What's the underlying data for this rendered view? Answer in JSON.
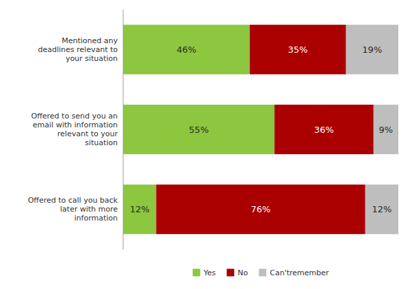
{
  "chart_data": {
    "type": "bar",
    "orientation": "horizontal",
    "stacked": true,
    "data_labels": true,
    "tick_labels": "y",
    "grid": false,
    "legend": "bottom",
    "categories": [
      "Mentioned any\ndeadlines relevant to\nyour situation",
      "Offered to send you an\nemail with information\nrelevant to your\nsituation",
      "Offered to call you back\nlater with more\ninformation"
    ],
    "xlim": [
      0,
      100
    ],
    "series": [
      {
        "name": "Yes",
        "color": "#8DC63F",
        "values": [
          46,
          55,
          12
        ],
        "value_labels": [
          "46%",
          "55%",
          "12%"
        ]
      },
      {
        "name": "No",
        "color": "#AA0000",
        "values": [
          35,
          36,
          76
        ],
        "value_labels": [
          "35%",
          "36%",
          "76%"
        ]
      },
      {
        "name": "Can'tremember",
        "color": "#BEBEBE",
        "values": [
          19,
          9,
          12
        ],
        "value_labels": [
          "19%",
          "9%",
          "12%"
        ]
      }
    ]
  }
}
